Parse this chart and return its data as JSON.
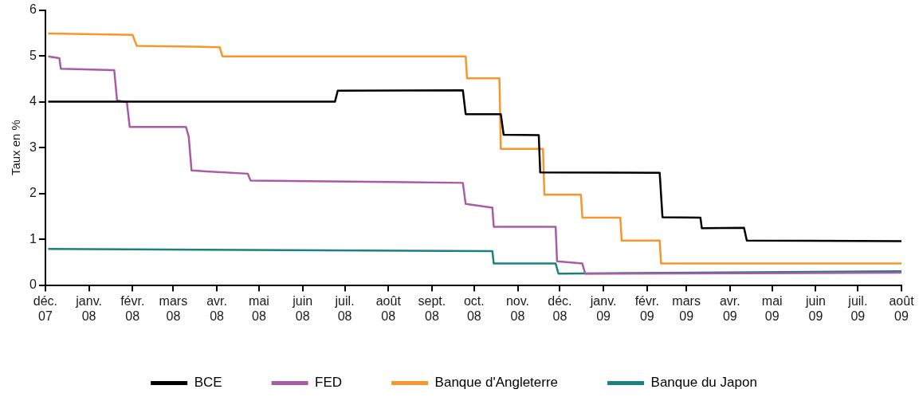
{
  "chart_data": {
    "type": "line",
    "ylabel": "Taux en %",
    "ylim": [
      0,
      6
    ],
    "yticks": [
      0,
      1,
      2,
      3,
      4,
      5,
      6
    ],
    "xlim": [
      "2007-12-01",
      "2009-08-01"
    ],
    "xticks": [
      {
        "value": "2007-12-01",
        "label": "déc.\n07"
      },
      {
        "value": "2008-01-01",
        "label": "janv.\n08"
      },
      {
        "value": "2008-02-01",
        "label": "févr.\n08"
      },
      {
        "value": "2008-03-01",
        "label": "mars\n08"
      },
      {
        "value": "2008-04-01",
        "label": "avr.\n08"
      },
      {
        "value": "2008-05-01",
        "label": "mai\n08"
      },
      {
        "value": "2008-06-01",
        "label": "juin\n08"
      },
      {
        "value": "2008-07-01",
        "label": "juil.\n08"
      },
      {
        "value": "2008-08-01",
        "label": "août\n08"
      },
      {
        "value": "2008-09-01",
        "label": "sept.\n08"
      },
      {
        "value": "2008-10-01",
        "label": "oct.\n08"
      },
      {
        "value": "2008-11-01",
        "label": "nov.\n08"
      },
      {
        "value": "2008-12-01",
        "label": "déc.\n08"
      },
      {
        "value": "2009-01-01",
        "label": "janv.\n09"
      },
      {
        "value": "2009-02-01",
        "label": "févr.\n09"
      },
      {
        "value": "2009-03-01",
        "label": "mars\n09"
      },
      {
        "value": "2009-04-01",
        "label": "avr.\n09"
      },
      {
        "value": "2009-05-01",
        "label": "mai\n09"
      },
      {
        "value": "2009-06-01",
        "label": "juin\n09"
      },
      {
        "value": "2009-07-01",
        "label": "juil.\n09"
      },
      {
        "value": "2009-08-01",
        "label": "août\n09"
      }
    ],
    "grid": false,
    "legend": "bottom",
    "marker": "none",
    "line_style": "solid",
    "series": [
      {
        "name": "BCE",
        "color": "#000000",
        "x": [
          "2007-12-03",
          "2008-06-24",
          "2008-06-26",
          "2008-09-23",
          "2008-09-25",
          "2008-10-20",
          "2008-10-22",
          "2008-11-16",
          "2008-11-17",
          "2009-02-10",
          "2009-02-12",
          "2009-03-11",
          "2009-03-12",
          "2009-04-11",
          "2009-04-13",
          "2009-08-01"
        ],
        "values": [
          4.0,
          4.0,
          4.24,
          4.25,
          3.73,
          3.73,
          3.28,
          3.27,
          2.46,
          2.45,
          1.48,
          1.47,
          1.24,
          1.25,
          0.97,
          0.96
        ]
      },
      {
        "name": "FED",
        "color": "#a95ca6",
        "x": [
          "2007-12-03",
          "2007-12-11",
          "2007-12-12",
          "2008-01-19",
          "2008-01-21",
          "2008-01-28",
          "2008-01-30",
          "2008-03-10",
          "2008-03-12",
          "2008-03-14",
          "2008-04-23",
          "2008-04-25",
          "2008-09-23",
          "2008-09-25",
          "2008-10-14",
          "2008-10-15",
          "2008-11-28",
          "2008-11-29",
          "2008-12-17",
          "2008-12-19",
          "2009-08-01"
        ],
        "values": [
          4.99,
          4.95,
          4.72,
          4.69,
          4.03,
          3.99,
          3.45,
          3.45,
          3.24,
          2.5,
          2.43,
          2.28,
          2.23,
          1.77,
          1.69,
          1.27,
          1.27,
          0.52,
          0.47,
          0.25,
          0.27
        ]
      },
      {
        "name": "Banque d'Angleterre",
        "color": "#f7962b",
        "x": [
          "2007-12-03",
          "2008-02-01",
          "2008-02-04",
          "2008-04-03",
          "2008-04-05",
          "2008-09-25",
          "2008-09-26",
          "2008-10-19",
          "2008-10-20",
          "2008-11-19",
          "2008-11-20",
          "2008-12-16",
          "2008-12-17",
          "2009-01-13",
          "2009-01-14",
          "2009-02-10",
          "2009-02-11",
          "2009-08-01"
        ],
        "values": [
          5.49,
          5.46,
          5.22,
          5.19,
          4.99,
          4.99,
          4.51,
          4.51,
          2.97,
          2.97,
          1.97,
          1.97,
          1.47,
          1.47,
          0.97,
          0.97,
          0.47,
          0.47
        ]
      },
      {
        "name": "Banque du Japon",
        "color": "#1a8080",
        "x": [
          "2007-12-03",
          "2008-10-14",
          "2008-10-15",
          "2008-11-28",
          "2008-11-30",
          "2009-08-01"
        ],
        "values": [
          0.79,
          0.74,
          0.47,
          0.47,
          0.25,
          0.3
        ]
      }
    ]
  }
}
